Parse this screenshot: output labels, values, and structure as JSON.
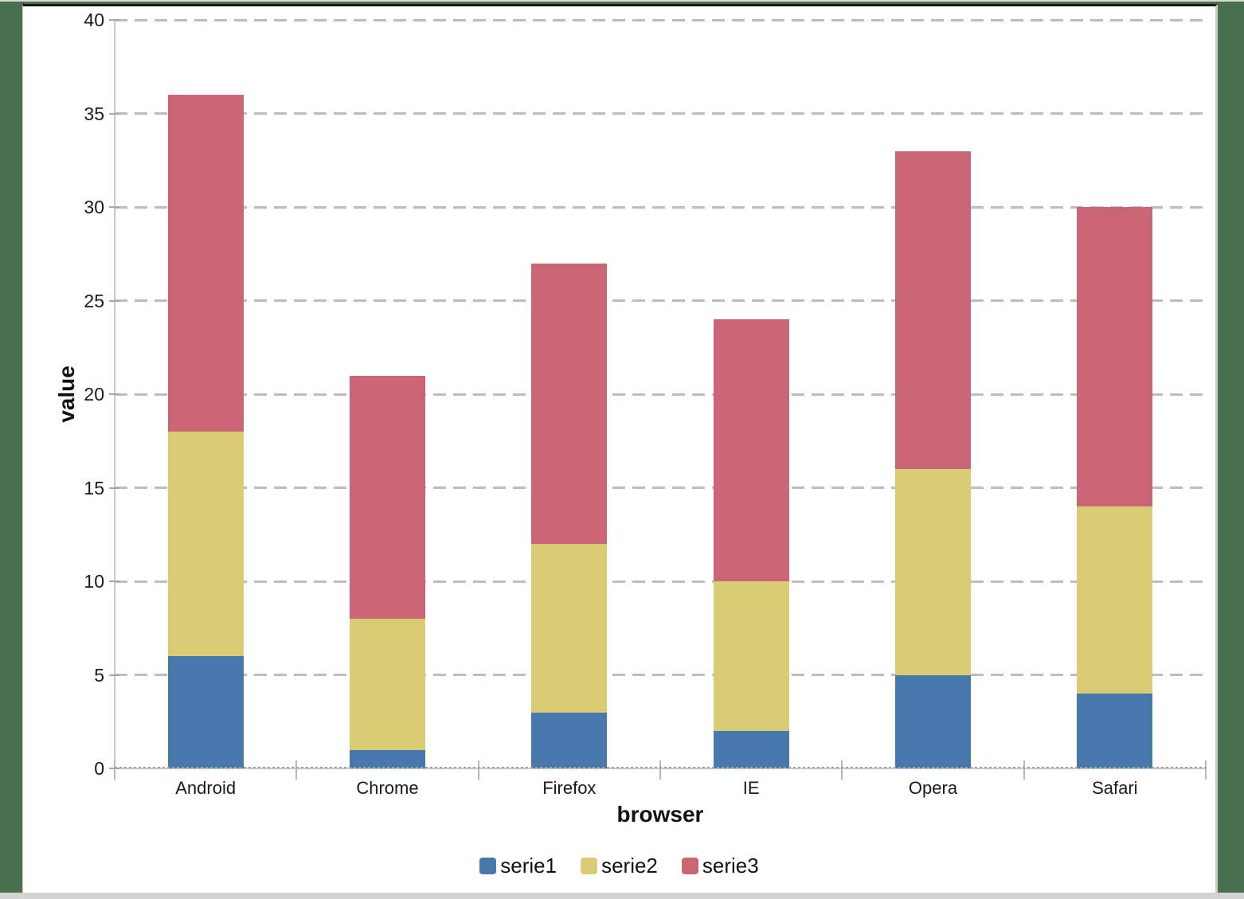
{
  "chart_data": {
    "type": "bar",
    "stacked": true,
    "title": "",
    "xlabel": "browser",
    "ylabel": "value",
    "categories": [
      "Android",
      "Chrome",
      "Firefox",
      "IE",
      "Opera",
      "Safari"
    ],
    "series": [
      {
        "name": "serie1",
        "color": "#4678ac",
        "values": [
          6,
          1,
          3,
          2,
          5,
          4
        ]
      },
      {
        "name": "serie2",
        "color": "#d9cc75",
        "values": [
          12,
          7,
          9,
          8,
          11,
          10
        ]
      },
      {
        "name": "serie3",
        "color": "#c96574",
        "values": [
          18,
          13,
          15,
          14,
          17,
          16
        ]
      }
    ],
    "stack_totals": [
      36,
      21,
      27,
      24,
      33,
      30
    ],
    "ylim": [
      0,
      40
    ],
    "ytick_step": 5,
    "yticks": [
      "0",
      "5",
      "10",
      "15",
      "20",
      "25",
      "30",
      "35",
      "40"
    ],
    "grid": "horizontal dashed gridlines",
    "legend_position": "bottom",
    "legend_labels": [
      "serie1",
      "serie2",
      "serie3"
    ]
  },
  "frame": {
    "background_color": "#48704d",
    "card_background": "#ffffff",
    "card_top_edge_color": "#181818",
    "card_border_color": "#cbcbcb",
    "bottom_strip_color": "#d3d3d3"
  },
  "style_colors": {
    "gridline": "#bdbdbd",
    "axis_line": "#c6c6c6",
    "tick_text": "#1a1a1a",
    "title_text": "#111111"
  }
}
